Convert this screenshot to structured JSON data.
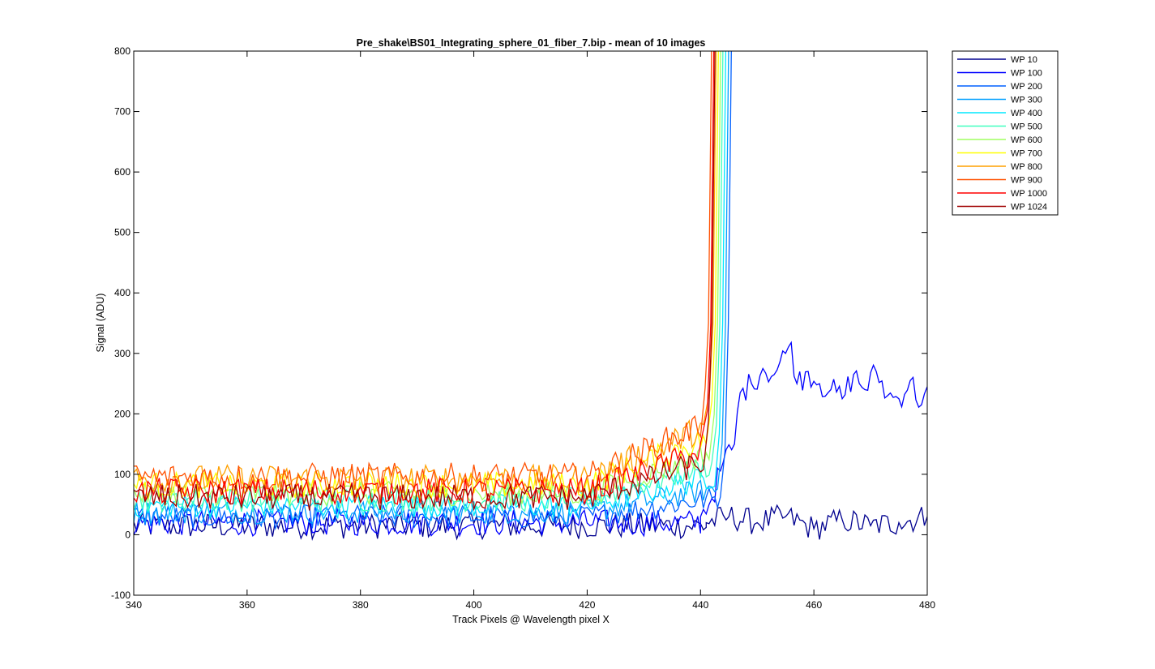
{
  "chart_data": {
    "type": "line",
    "title": "Pre_shake\\BS01_Integrating_sphere_01_fiber_7.bip - mean of 10 images",
    "xlabel": "Track Pixels @ Wavelength pixel X",
    "ylabel": "Signal (ADU)",
    "xlim": [
      340,
      480
    ],
    "ylim": [
      -100,
      800
    ],
    "xticks": [
      340,
      360,
      380,
      400,
      420,
      440,
      460,
      480
    ],
    "yticks": [
      -100,
      0,
      100,
      200,
      300,
      400,
      500,
      600,
      700,
      800
    ],
    "grid": false,
    "legend_position": "outside-top-right",
    "series": [
      {
        "name": "WP 10",
        "color": "#00008f",
        "baseline": 15,
        "noise": 22,
        "rise": null,
        "tail": [
          [
            441,
            20
          ],
          [
            445,
            30
          ],
          [
            450,
            20
          ],
          [
            455,
            30
          ],
          [
            460,
            10
          ],
          [
            465,
            25
          ],
          [
            470,
            15
          ],
          [
            475,
            20
          ],
          [
            480,
            30
          ]
        ]
      },
      {
        "name": "WP 100",
        "color": "#0000ff",
        "baseline": 20,
        "noise": 22,
        "rise": null,
        "tail": [
          [
            440,
            30
          ],
          [
            442,
            60
          ],
          [
            444,
            120
          ],
          [
            446,
            150
          ],
          [
            447,
            235
          ],
          [
            449,
            250
          ],
          [
            451,
            275
          ],
          [
            453,
            265
          ],
          [
            455,
            300
          ],
          [
            456,
            318
          ],
          [
            457,
            250
          ],
          [
            459,
            270
          ],
          [
            461,
            250
          ],
          [
            463,
            240
          ],
          [
            465,
            225
          ],
          [
            467,
            265
          ],
          [
            469,
            240
          ],
          [
            471,
            270
          ],
          [
            473,
            230
          ],
          [
            475,
            225
          ],
          [
            477,
            255
          ],
          [
            479,
            215
          ],
          [
            480,
            245
          ]
        ]
      },
      {
        "name": "WP 200",
        "color": "#0060ff",
        "baseline": 30,
        "noise": 20,
        "rise": 445.5,
        "tail": []
      },
      {
        "name": "WP 300",
        "color": "#00a0ff",
        "baseline": 38,
        "noise": 20,
        "rise": 445.0,
        "tail": []
      },
      {
        "name": "WP 400",
        "color": "#00e8ff",
        "baseline": 48,
        "noise": 20,
        "rise": 444.5,
        "tail": []
      },
      {
        "name": "WP 500",
        "color": "#40ffbf",
        "baseline": 58,
        "noise": 20,
        "rise": 444.0,
        "tail": []
      },
      {
        "name": "WP 600",
        "color": "#a0ff60",
        "baseline": 68,
        "noise": 20,
        "rise": 443.6,
        "tail": []
      },
      {
        "name": "WP 700",
        "color": "#ffff00",
        "baseline": 82,
        "noise": 22,
        "rise": 443.2,
        "tail": []
      },
      {
        "name": "WP 800",
        "color": "#ffa000",
        "baseline": 92,
        "noise": 24,
        "rise": 442.8,
        "tail": []
      },
      {
        "name": "WP 900",
        "color": "#ff5000",
        "baseline": 95,
        "noise": 24,
        "rise": 442.0,
        "tail": []
      },
      {
        "name": "WP 1000",
        "color": "#ff0000",
        "baseline": 72,
        "noise": 22,
        "rise": 442.4,
        "tail": []
      },
      {
        "name": "WP 1024",
        "color": "#a00000",
        "baseline": 62,
        "noise": 22,
        "rise": 442.6,
        "tail": []
      }
    ]
  }
}
